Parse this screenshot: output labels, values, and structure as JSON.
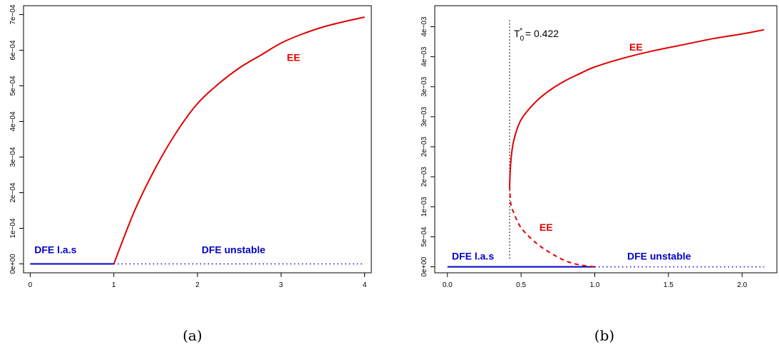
{
  "colors": {
    "ee": "#e00000",
    "dfe": "#0000cc",
    "threshold": "#000000",
    "axis": "#000000"
  },
  "chart_data": [
    {
      "type": "line",
      "caption": "(a)",
      "xlim": [
        -0.08,
        4.08
      ],
      "ylim": [
        -2.5e-05,
        0.000725
      ],
      "xticks": [
        0,
        1,
        2,
        3,
        4
      ],
      "xtick_labels": [
        "0",
        "1",
        "2",
        "3",
        "4"
      ],
      "yticks": [
        0,
        0.0001,
        0.0002,
        0.0003,
        0.0004,
        0.0005,
        0.0006,
        0.0007
      ],
      "ytick_labels": [
        "0e+00",
        "1e−04",
        "2e−04",
        "3e−04",
        "4e−04",
        "5e−04",
        "6e−04",
        "7e−04"
      ],
      "series": [
        {
          "style": "dfe-solid",
          "x": [
            0,
            1
          ],
          "y": [
            0,
            0
          ]
        },
        {
          "style": "dfe-dotted",
          "x": [
            1,
            4
          ],
          "y": [
            0,
            0
          ]
        },
        {
          "style": "ee-solid",
          "x": [
            1,
            1.25,
            1.5,
            1.75,
            2,
            2.25,
            2.5,
            2.75,
            3,
            3.25,
            3.5,
            3.75,
            4
          ],
          "y": [
            0,
            0.00015,
            0.00027,
            0.00037,
            0.00045,
            0.000505,
            0.00055,
            0.000585,
            0.00062,
            0.000645,
            0.000665,
            0.00068,
            0.000693
          ]
        }
      ],
      "annotations": [
        {
          "text": "DFE l.a.s",
          "x": 0.05,
          "y": 3e-05,
          "color": "dfe",
          "anchor": "start"
        },
        {
          "text": "DFE unstable",
          "x": 2.05,
          "y": 3e-05,
          "color": "dfe",
          "anchor": "start"
        },
        {
          "text": "EE",
          "x": 3.15,
          "y": 0.00057,
          "color": "ee",
          "anchor": "middle"
        }
      ]
    },
    {
      "type": "line",
      "caption": "(b)",
      "xlim": [
        -0.086,
        2.236
      ],
      "ylim": [
        -0.0001,
        0.00435
      ],
      "xticks": [
        0,
        0.5,
        1,
        1.5,
        2
      ],
      "xtick_labels": [
        "0.0",
        "0.5",
        "1.0",
        "1.5",
        "2.0"
      ],
      "yticks": [
        0,
        0.0005,
        0.001,
        0.0015,
        0.002,
        0.0025,
        0.003,
        0.0035,
        0.004
      ],
      "ytick_labels": [
        "0e+00",
        "5e−04",
        "1e−03",
        "2e−03",
        "2e−03",
        "3e−03",
        "3e−03",
        "4e−03",
        "4e−03"
      ],
      "threshold": {
        "x": 0.422,
        "label": "T",
        "sub": "0",
        "sup": "*",
        "value_text": " = 0.422"
      },
      "series": [
        {
          "style": "dfe-solid",
          "x": [
            0,
            1
          ],
          "y": [
            0,
            0
          ]
        },
        {
          "style": "dfe-dotted",
          "x": [
            1,
            2.15
          ],
          "y": [
            0,
            0
          ]
        },
        {
          "style": "ee-solid",
          "x": [
            0.422,
            0.43,
            0.45,
            0.5,
            0.6,
            0.7,
            0.8,
            0.9,
            1.0,
            1.2,
            1.4,
            1.6,
            1.8,
            2.0,
            2.15
          ],
          "y": [
            0.00135,
            0.00175,
            0.0021,
            0.00245,
            0.00275,
            0.00295,
            0.0031,
            0.00322,
            0.00333,
            0.00348,
            0.0036,
            0.0037,
            0.0038,
            0.00388,
            0.00395
          ]
        },
        {
          "style": "ee-dashed",
          "x": [
            0.422,
            0.43,
            0.45,
            0.5,
            0.6,
            0.7,
            0.8,
            0.9,
            1.0
          ],
          "y": [
            0.00135,
            0.00105,
            0.0009,
            0.00065,
            0.0004,
            0.00023,
            0.0001,
            3e-05,
            0
          ]
        }
      ],
      "annotations": [
        {
          "text": "DFE l.a.s",
          "x": 0.03,
          "y": 0.00012,
          "color": "dfe",
          "anchor": "start"
        },
        {
          "text": "DFE unstable",
          "x": 1.22,
          "y": 0.00012,
          "color": "dfe",
          "anchor": "start"
        },
        {
          "text": "EE",
          "x": 1.28,
          "y": 0.0036,
          "color": "ee",
          "anchor": "middle"
        },
        {
          "text": "EE",
          "x": 0.67,
          "y": 0.0006,
          "color": "ee",
          "anchor": "middle"
        }
      ]
    }
  ]
}
